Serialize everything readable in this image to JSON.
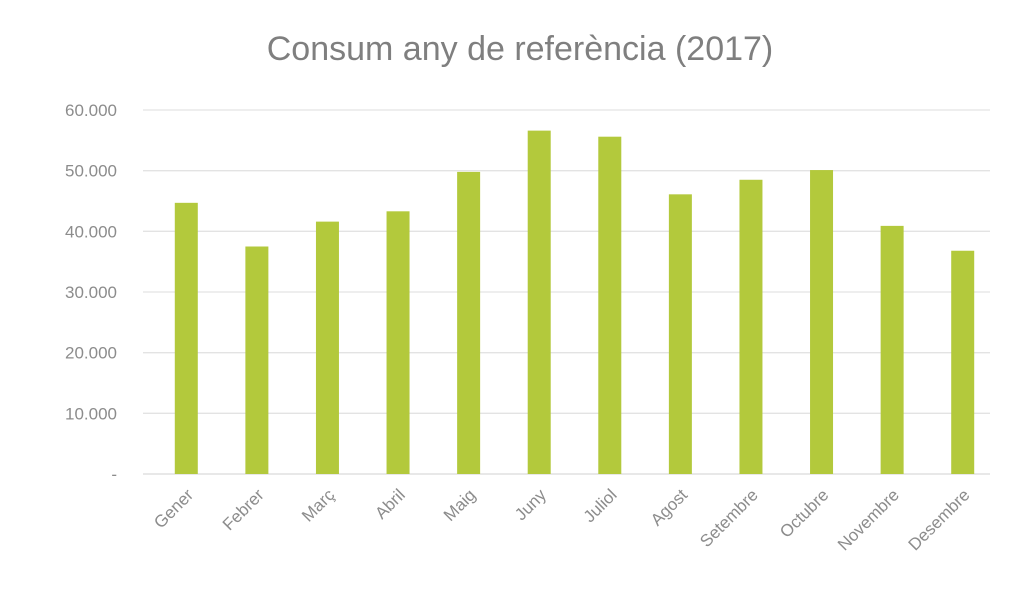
{
  "chart_data": {
    "type": "bar",
    "title": "Consum any de referència (2017)",
    "categories": [
      "Gener",
      "Febrer",
      "Març",
      "Abril",
      "Maig",
      "Juny",
      "Juliol",
      "Agost",
      "Setembre",
      "Octubre",
      "Novembre",
      "Desembre"
    ],
    "series": [
      {
        "values": [
          44700,
          37500,
          41600,
          43300,
          49800,
          56600,
          55600,
          46100,
          48500,
          50100,
          40900,
          36800
        ]
      }
    ],
    "ylim": [
      0,
      60000
    ],
    "y_ticks": [
      {
        "value": 0,
        "label": "-"
      },
      {
        "value": 10000,
        "label": "10.000"
      },
      {
        "value": 20000,
        "label": "20.000"
      },
      {
        "value": 30000,
        "label": "30.000"
      },
      {
        "value": 40000,
        "label": "40.000"
      },
      {
        "value": 50000,
        "label": "50.000"
      },
      {
        "value": 60000,
        "label": "60.000"
      }
    ],
    "bar_color": "#b3c93c",
    "grid": true,
    "legend": "none"
  }
}
